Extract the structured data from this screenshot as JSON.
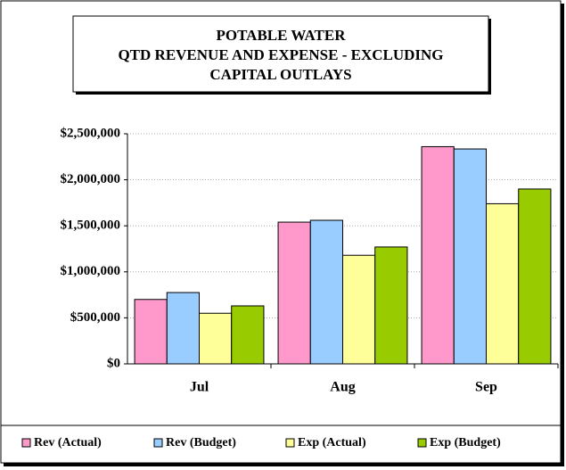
{
  "chart_data": {
    "type": "bar",
    "title": [
      "POTABLE WATER",
      "QTD REVENUE AND EXPENSE - EXCLUDING",
      "CAPITAL OUTLAYS"
    ],
    "categories": [
      "Jul",
      "Aug",
      "Sep"
    ],
    "series": [
      {
        "name": "Rev (Actual)",
        "color": "#ff99cc",
        "values": [
          700000,
          1540000,
          2360000
        ]
      },
      {
        "name": "Rev (Budget)",
        "color": "#99ccff",
        "values": [
          775000,
          1560000,
          2335000
        ]
      },
      {
        "name": "Exp (Actual)",
        "color": "#ffff99",
        "values": [
          550000,
          1180000,
          1740000
        ]
      },
      {
        "name": "Exp (Budget)",
        "color": "#99cc00",
        "values": [
          630000,
          1270000,
          1900000
        ]
      }
    ],
    "ylim": [
      0,
      2500000
    ],
    "yticks": [
      {
        "value": 0,
        "label": "$0"
      },
      {
        "value": 500000,
        "label": "$500,000"
      },
      {
        "value": 1000000,
        "label": "$1,000,000"
      },
      {
        "value": 1500000,
        "label": "$1,500,000"
      },
      {
        "value": 2000000,
        "label": "$2,000,000"
      },
      {
        "value": 2500000,
        "label": "$2,500,000"
      }
    ],
    "grid": true,
    "legend": "bottom"
  }
}
